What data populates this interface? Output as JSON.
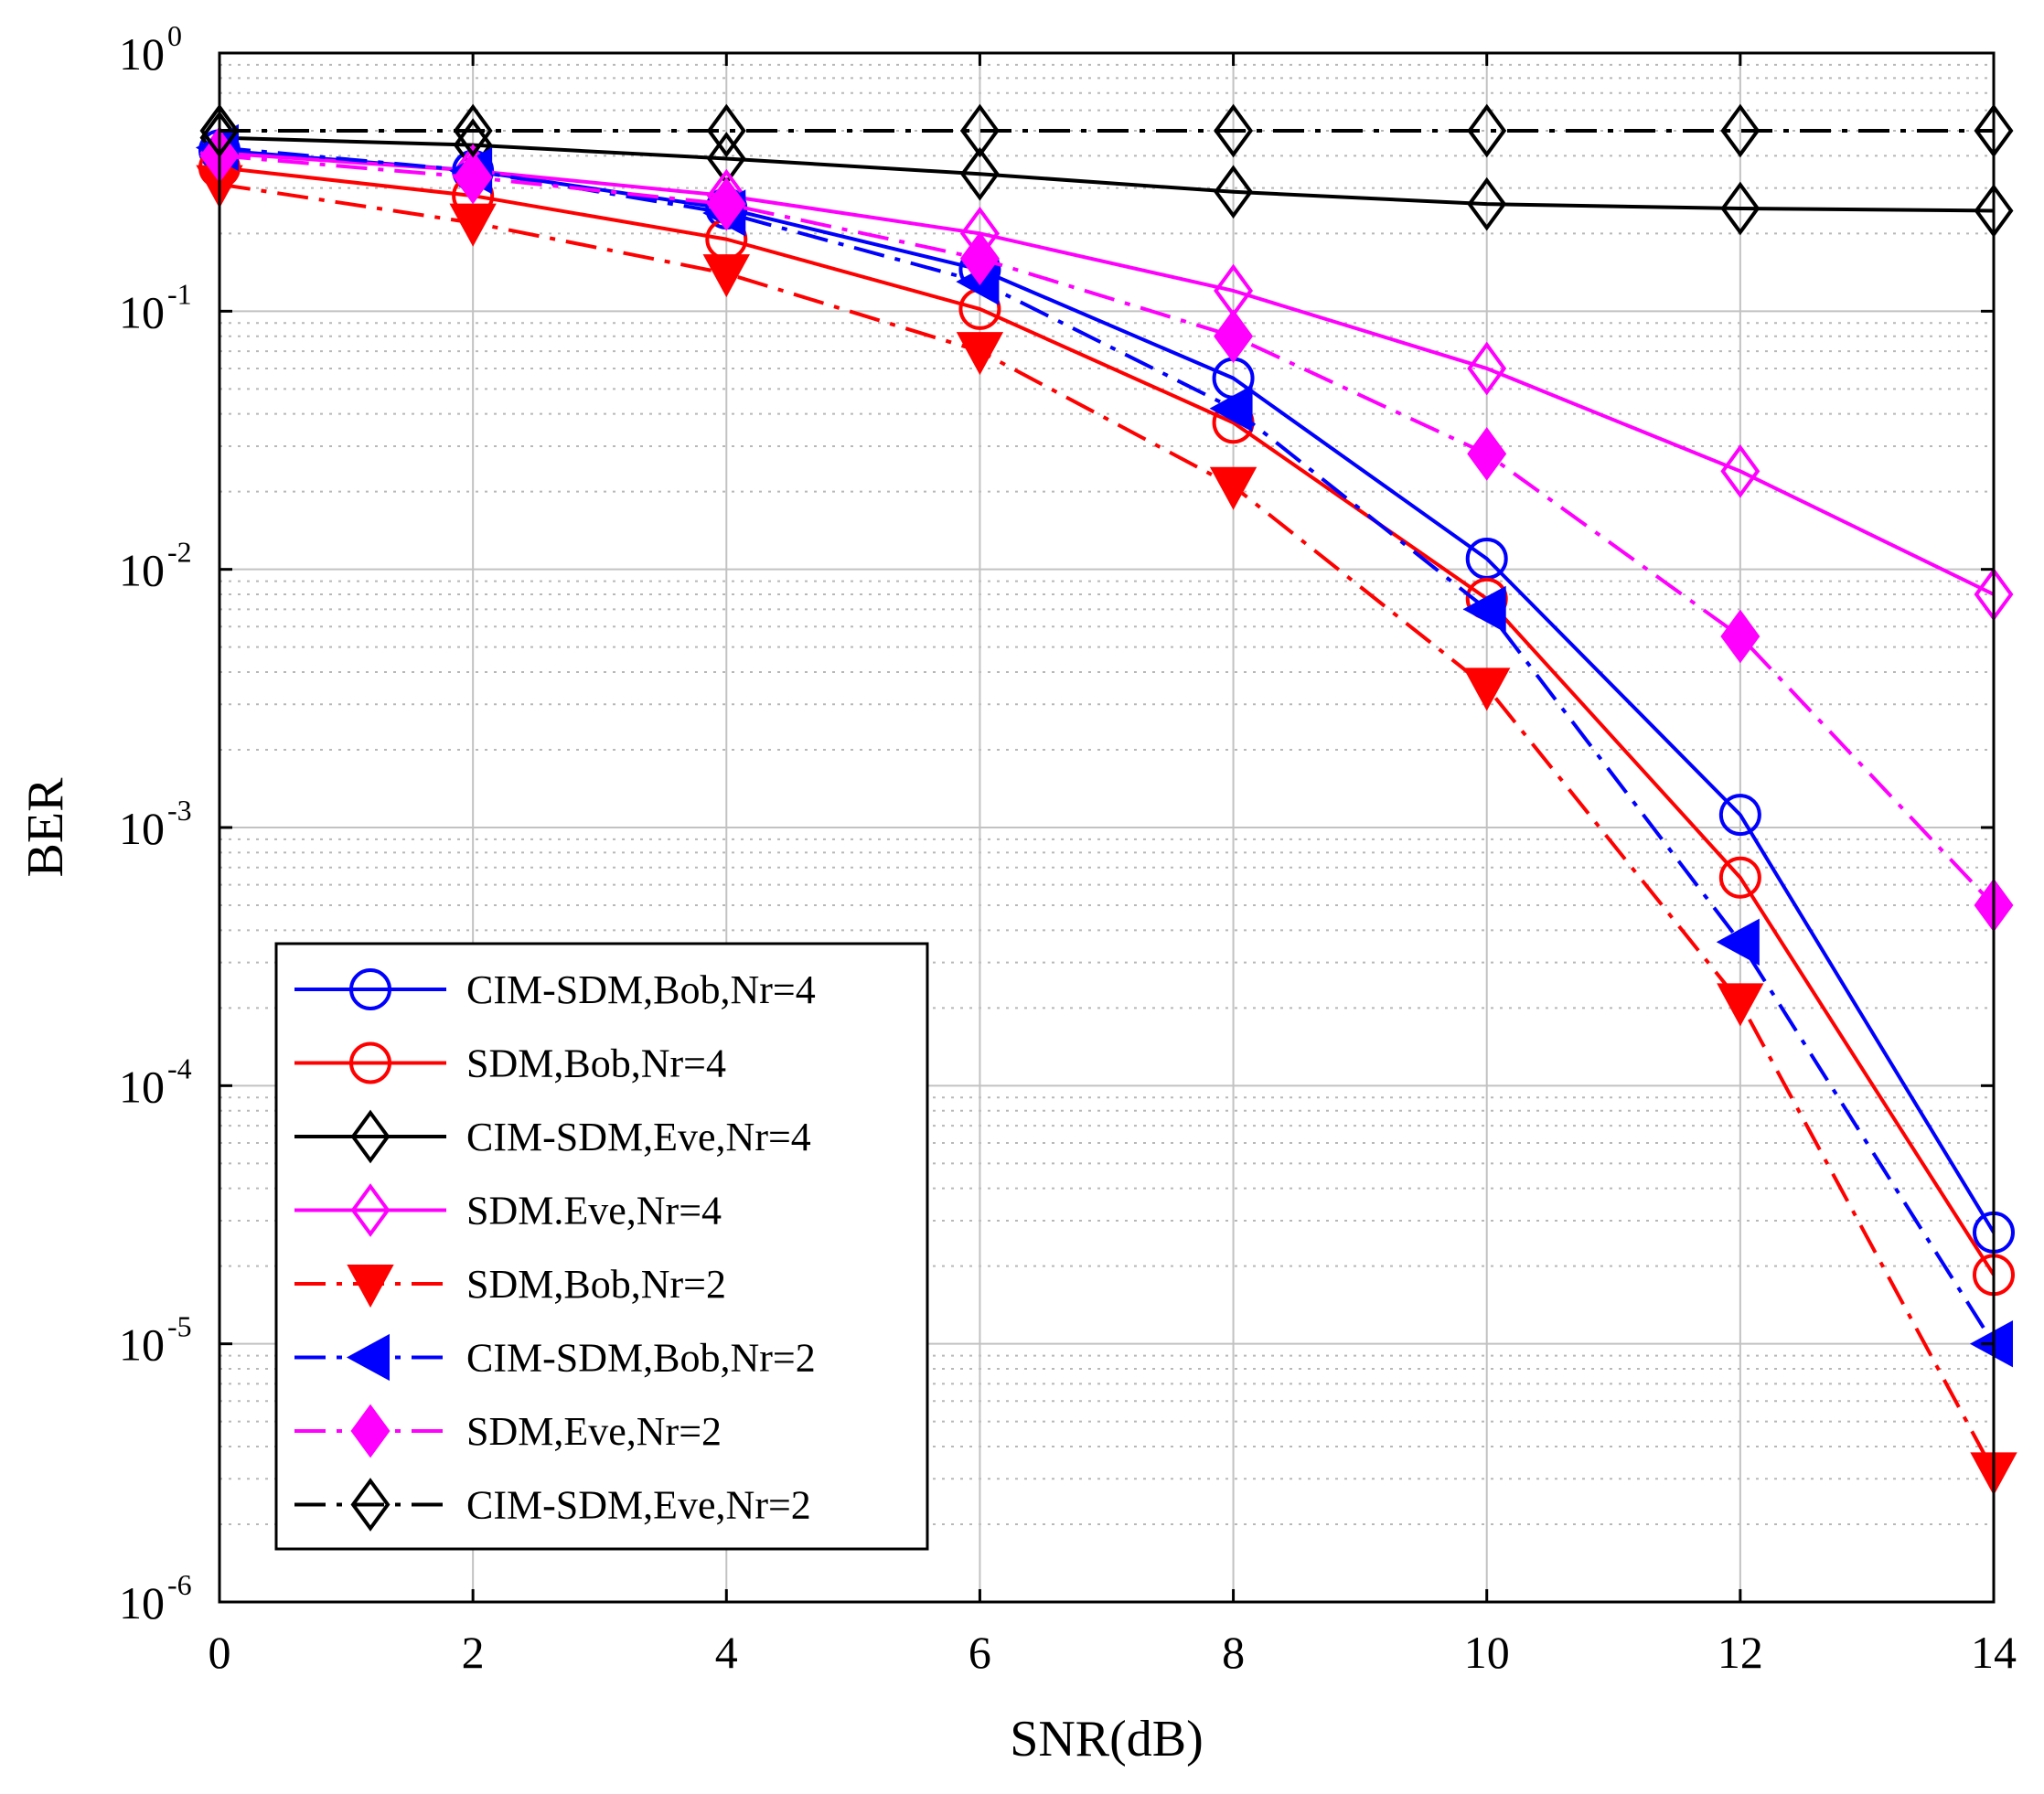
{
  "chart_data": {
    "type": "line",
    "title": "",
    "xlabel": "SNR(dB)",
    "ylabel": "BER",
    "xlim": [
      0,
      14
    ],
    "ylim": [
      1e-06,
      1
    ],
    "yscale": "log",
    "grid": true,
    "minor_grid": true,
    "legend_position": "lower-left",
    "x_ticks": [
      "0",
      "2",
      "4",
      "6",
      "8",
      "10",
      "12",
      "14"
    ],
    "y_ticks": [
      {
        "base": "10",
        "exp": "0"
      },
      {
        "base": "10",
        "exp": "-1"
      },
      {
        "base": "10",
        "exp": "-2"
      },
      {
        "base": "10",
        "exp": "-3"
      },
      {
        "base": "10",
        "exp": "-4"
      },
      {
        "base": "10",
        "exp": "-5"
      },
      {
        "base": "10",
        "exp": "-6"
      }
    ],
    "x": [
      0,
      2,
      4,
      6,
      8,
      10,
      12,
      14
    ],
    "series": [
      {
        "name": "CIM-SDM,Bob,Nr=4",
        "color": "#0000ff",
        "dash": "solid",
        "marker": "circle-open",
        "values": [
          0.42,
          0.35,
          0.25,
          0.145,
          0.055,
          0.011,
          0.00112,
          2.7e-05
        ]
      },
      {
        "name": "SDM,Bob,Nr=4",
        "color": "#ff0000",
        "dash": "solid",
        "marker": "circle-open",
        "values": [
          0.36,
          0.28,
          0.19,
          0.102,
          0.037,
          0.0077,
          0.00064,
          1.85e-05
        ]
      },
      {
        "name": "CIM-SDM,Eve,Nr=4",
        "color": "#000000",
        "dash": "solid",
        "marker": "diamond-open",
        "values": [
          0.47,
          0.44,
          0.39,
          0.34,
          0.29,
          0.26,
          0.25,
          0.245
        ]
      },
      {
        "name": "SDM.Eve,Nr=4",
        "color": "#ff00ff",
        "dash": "solid",
        "marker": "diamond-open",
        "values": [
          0.41,
          0.35,
          0.28,
          0.2,
          0.12,
          0.06,
          0.024,
          0.008
        ]
      },
      {
        "name": "SDM,Bob,Nr=2",
        "color": "#ff0000",
        "dash": "dashdot",
        "marker": "triangle-down-filled",
        "values": [
          0.31,
          0.22,
          0.14,
          0.07,
          0.021,
          0.0035,
          0.00021,
          3.2e-06
        ]
      },
      {
        "name": "CIM-SDM,Bob,Nr=2",
        "color": "#0000ff",
        "dash": "dashdot",
        "marker": "triangle-left-filled",
        "values": [
          0.43,
          0.35,
          0.24,
          0.13,
          0.042,
          0.007,
          0.00036,
          1e-05
        ]
      },
      {
        "name": "SDM,Eve,Nr=2",
        "color": "#ff00ff",
        "dash": "dashdot",
        "marker": "diamond-filled",
        "values": [
          0.4,
          0.33,
          0.26,
          0.16,
          0.08,
          0.028,
          0.0055,
          0.0005
        ]
      },
      {
        "name": "CIM-SDM,Eve,Nr=2",
        "color": "#000000",
        "dash": "dashdot",
        "marker": "diamond-open",
        "values": [
          0.5,
          0.5,
          0.5,
          0.5,
          0.5,
          0.5,
          0.5,
          0.5
        ]
      }
    ]
  }
}
